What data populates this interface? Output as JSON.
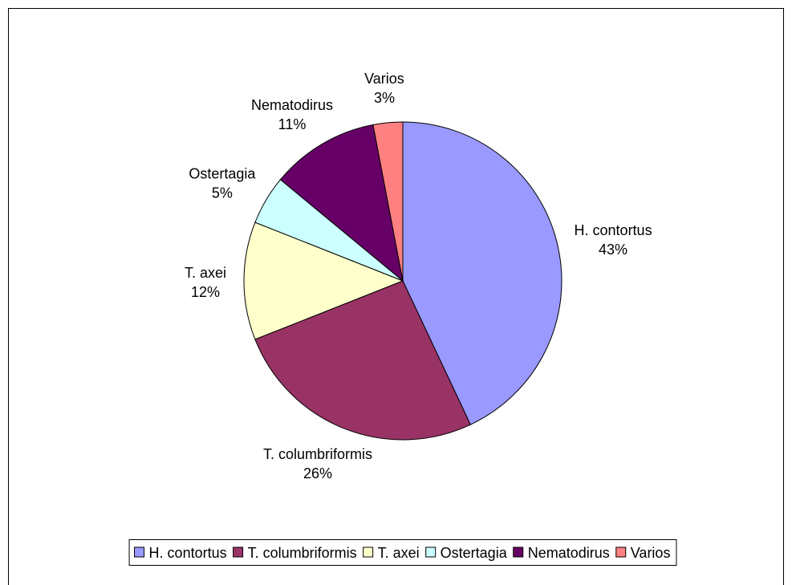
{
  "chart_data": {
    "type": "pie",
    "categories": [
      "H. contortus",
      "T. columbriformis",
      "T. axei",
      "Ostertagia",
      "Nematodirus",
      "Varios"
    ],
    "values": [
      43,
      26,
      12,
      5,
      11,
      3
    ],
    "value_labels": [
      "43%",
      "26%",
      "12%",
      "5%",
      "11%",
      "3%"
    ],
    "colors": [
      "#9999ff",
      "#993366",
      "#ffffcc",
      "#ccffff",
      "#660066",
      "#ff8080"
    ],
    "legend": "bottom"
  }
}
